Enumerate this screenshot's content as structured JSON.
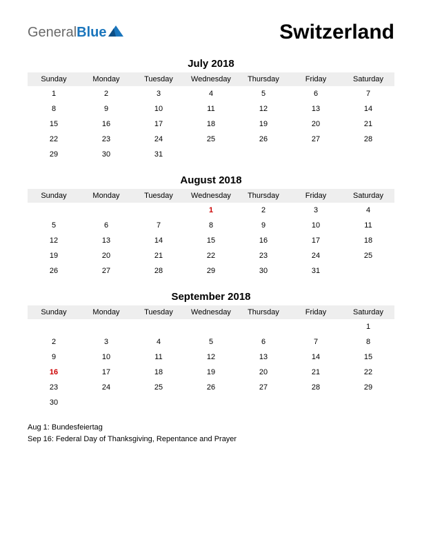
{
  "logo": {
    "part1": "General",
    "part2": "Blue"
  },
  "country": "Switzerland",
  "day_headers": [
    "Sunday",
    "Monday",
    "Tuesday",
    "Wednesday",
    "Thursday",
    "Friday",
    "Saturday"
  ],
  "colors": {
    "background": "#ffffff",
    "text": "#000000",
    "header_bg": "#eeeeee",
    "holiday": "#cc0000",
    "logo_general": "#6a6a6a",
    "logo_blue": "#1a75bc"
  },
  "months": [
    {
      "title": "July 2018",
      "weeks": [
        [
          {
            "d": "1"
          },
          {
            "d": "2"
          },
          {
            "d": "3"
          },
          {
            "d": "4"
          },
          {
            "d": "5"
          },
          {
            "d": "6"
          },
          {
            "d": "7"
          }
        ],
        [
          {
            "d": "8"
          },
          {
            "d": "9"
          },
          {
            "d": "10"
          },
          {
            "d": "11"
          },
          {
            "d": "12"
          },
          {
            "d": "13"
          },
          {
            "d": "14"
          }
        ],
        [
          {
            "d": "15"
          },
          {
            "d": "16"
          },
          {
            "d": "17"
          },
          {
            "d": "18"
          },
          {
            "d": "19"
          },
          {
            "d": "20"
          },
          {
            "d": "21"
          }
        ],
        [
          {
            "d": "22"
          },
          {
            "d": "23"
          },
          {
            "d": "24"
          },
          {
            "d": "25"
          },
          {
            "d": "26"
          },
          {
            "d": "27"
          },
          {
            "d": "28"
          }
        ],
        [
          {
            "d": "29"
          },
          {
            "d": "30"
          },
          {
            "d": "31"
          },
          {
            "d": ""
          },
          {
            "d": ""
          },
          {
            "d": ""
          },
          {
            "d": ""
          }
        ]
      ]
    },
    {
      "title": "August 2018",
      "weeks": [
        [
          {
            "d": ""
          },
          {
            "d": ""
          },
          {
            "d": ""
          },
          {
            "d": "1",
            "h": true
          },
          {
            "d": "2"
          },
          {
            "d": "3"
          },
          {
            "d": "4"
          }
        ],
        [
          {
            "d": "5"
          },
          {
            "d": "6"
          },
          {
            "d": "7"
          },
          {
            "d": "8"
          },
          {
            "d": "9"
          },
          {
            "d": "10"
          },
          {
            "d": "11"
          }
        ],
        [
          {
            "d": "12"
          },
          {
            "d": "13"
          },
          {
            "d": "14"
          },
          {
            "d": "15"
          },
          {
            "d": "16"
          },
          {
            "d": "17"
          },
          {
            "d": "18"
          }
        ],
        [
          {
            "d": "19"
          },
          {
            "d": "20"
          },
          {
            "d": "21"
          },
          {
            "d": "22"
          },
          {
            "d": "23"
          },
          {
            "d": "24"
          },
          {
            "d": "25"
          }
        ],
        [
          {
            "d": "26"
          },
          {
            "d": "27"
          },
          {
            "d": "28"
          },
          {
            "d": "29"
          },
          {
            "d": "30"
          },
          {
            "d": "31"
          },
          {
            "d": ""
          }
        ]
      ]
    },
    {
      "title": "September 2018",
      "weeks": [
        [
          {
            "d": ""
          },
          {
            "d": ""
          },
          {
            "d": ""
          },
          {
            "d": ""
          },
          {
            "d": ""
          },
          {
            "d": ""
          },
          {
            "d": "1"
          }
        ],
        [
          {
            "d": "2"
          },
          {
            "d": "3"
          },
          {
            "d": "4"
          },
          {
            "d": "5"
          },
          {
            "d": "6"
          },
          {
            "d": "7"
          },
          {
            "d": "8"
          }
        ],
        [
          {
            "d": "9"
          },
          {
            "d": "10"
          },
          {
            "d": "11"
          },
          {
            "d": "12"
          },
          {
            "d": "13"
          },
          {
            "d": "14"
          },
          {
            "d": "15"
          }
        ],
        [
          {
            "d": "16",
            "h": true
          },
          {
            "d": "17"
          },
          {
            "d": "18"
          },
          {
            "d": "19"
          },
          {
            "d": "20"
          },
          {
            "d": "21"
          },
          {
            "d": "22"
          }
        ],
        [
          {
            "d": "23"
          },
          {
            "d": "24"
          },
          {
            "d": "25"
          },
          {
            "d": "26"
          },
          {
            "d": "27"
          },
          {
            "d": "28"
          },
          {
            "d": "29"
          }
        ],
        [
          {
            "d": "30"
          },
          {
            "d": ""
          },
          {
            "d": ""
          },
          {
            "d": ""
          },
          {
            "d": ""
          },
          {
            "d": ""
          },
          {
            "d": ""
          }
        ]
      ]
    }
  ],
  "notes": [
    "Aug 1: Bundesfeiertag",
    "Sep 16: Federal Day of Thanksgiving, Repentance and Prayer"
  ]
}
